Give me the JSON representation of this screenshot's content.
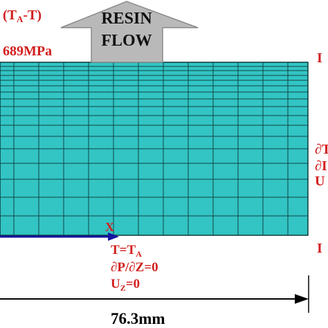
{
  "labels": {
    "stress_open": "(T",
    "stress_sub": "A",
    "stress_close": "-T)",
    "modulus": "689MPa"
  },
  "arrow": {
    "line1": "RESIN",
    "line2": "FLOW"
  },
  "axis_label": "X",
  "bottom_bc": {
    "temp_main": "T=T",
    "temp_sub": "A",
    "pressure": "∂P/∂Z=0",
    "disp_main": "U",
    "disp_sub": "Z",
    "disp_tail": "=0"
  },
  "right_bc": {
    "top": "I",
    "line1": "∂T",
    "line2": "∂I",
    "line3": "U",
    "bottom": "I"
  },
  "dimension": "76.3mm"
}
